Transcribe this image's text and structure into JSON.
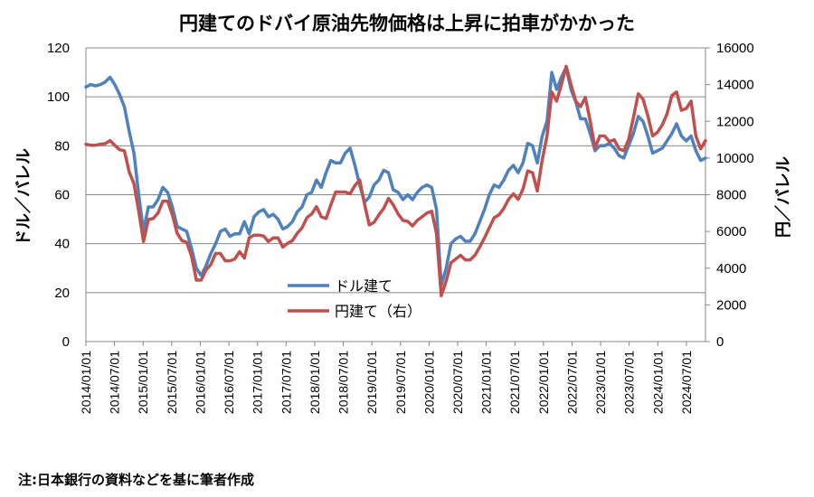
{
  "title": "円建てのドバイ原油先物価格は上昇に拍車がかかった",
  "note": "注:日本銀行の資料などを基に筆者作成",
  "chart_data": {
    "type": "line",
    "title": "円建てのドバイ原油先物価格は上昇に拍車がかかった",
    "ylabel_left": "ドル／バレル",
    "ylabel_right": "円／バレル",
    "ylim_left": [
      0,
      120
    ],
    "ylim_right": [
      0,
      16000
    ],
    "yticks_left": [
      "0",
      "20",
      "40",
      "60",
      "80",
      "100",
      "120"
    ],
    "yticks_right": [
      "0",
      "2000",
      "4000",
      "6000",
      "8000",
      "10000",
      "12000",
      "14000",
      "16000"
    ],
    "xticks": [
      "2014/01/01",
      "2014/07/01",
      "2015/01/01",
      "2015/07/01",
      "2016/01/01",
      "2016/07/01",
      "2017/01/01",
      "2017/07/01",
      "2018/01/01",
      "2018/07/01",
      "2019/01/01",
      "2019/07/01",
      "2020/01/01",
      "2020/07/01",
      "2021/01/01",
      "2021/07/01",
      "2022/01/01",
      "2022/07/01",
      "2023/01/01",
      "2023/07/01",
      "2024/01/01",
      "2024/07/01"
    ],
    "grid": "horizontal",
    "legend_position": "center",
    "x_start": "2014/01/01",
    "x_end": "2024/11/01",
    "series": [
      {
        "name": "ドル建て",
        "axis": "left",
        "color": "#4F81BD",
        "values": [
          104,
          105,
          104.5,
          105,
          106,
          108,
          105,
          101,
          96,
          86,
          77,
          60,
          45,
          55,
          55,
          58,
          63,
          61,
          55,
          47,
          46,
          45,
          38,
          30,
          27,
          31,
          36,
          40,
          45,
          46,
          43,
          44,
          44,
          49,
          44,
          51,
          53,
          54,
          51,
          52,
          50,
          46,
          47,
          49,
          53,
          55,
          60,
          61,
          66,
          63,
          69,
          74,
          73,
          73,
          77,
          79,
          72,
          64,
          57,
          59,
          64,
          66,
          70,
          69,
          62,
          61,
          58,
          60,
          58,
          61,
          63,
          64,
          63,
          54,
          23,
          30,
          40,
          42,
          43,
          41,
          41,
          44,
          49,
          54,
          60,
          64,
          63,
          66,
          70,
          72,
          69,
          73,
          81,
          80,
          73,
          84,
          90,
          110,
          103,
          108,
          112,
          103,
          98,
          91,
          91,
          85,
          78,
          80,
          80,
          81,
          79,
          76,
          75,
          80,
          85,
          92,
          90,
          84,
          77,
          78,
          79,
          82,
          85,
          89,
          84,
          82,
          84,
          78,
          74,
          75
        ]
      },
      {
        "name": "円建て（右）",
        "axis": "right",
        "color": "#C0504D",
        "values": [
          10750,
          10700,
          10700,
          10750,
          10780,
          10950,
          10700,
          10450,
          10400,
          9250,
          8600,
          7100,
          5450,
          6650,
          6700,
          7000,
          7650,
          7650,
          6900,
          5900,
          5500,
          5400,
          4650,
          3350,
          3350,
          3900,
          4200,
          4800,
          4800,
          4400,
          4400,
          4500,
          4900,
          4550,
          5650,
          5800,
          5800,
          5750,
          5450,
          5650,
          5650,
          5150,
          5350,
          5500,
          5900,
          6200,
          6750,
          6950,
          7350,
          6800,
          6700,
          7450,
          8150,
          8150,
          8150,
          8050,
          8500,
          8800,
          7500,
          6350,
          6500,
          6900,
          7250,
          7800,
          7450,
          6950,
          6600,
          6550,
          6300,
          6600,
          6800,
          7000,
          7100,
          5900,
          2500,
          3300,
          4300,
          4500,
          4700,
          4450,
          4450,
          4700,
          5150,
          5650,
          6200,
          6750,
          6900,
          7250,
          7750,
          8050,
          7750,
          8300,
          9300,
          9200,
          8200,
          9900,
          11200,
          13600,
          13100,
          14000,
          15000,
          14000,
          13100,
          12800,
          13300,
          12000,
          10550,
          11200,
          11200,
          10900,
          11000,
          10500,
          10400,
          11000,
          12200,
          13500,
          13200,
          12300,
          11200,
          11400,
          11800,
          12400,
          13400,
          13600,
          12600,
          12700,
          13100,
          11200,
          10500,
          10950
        ]
      }
    ]
  }
}
